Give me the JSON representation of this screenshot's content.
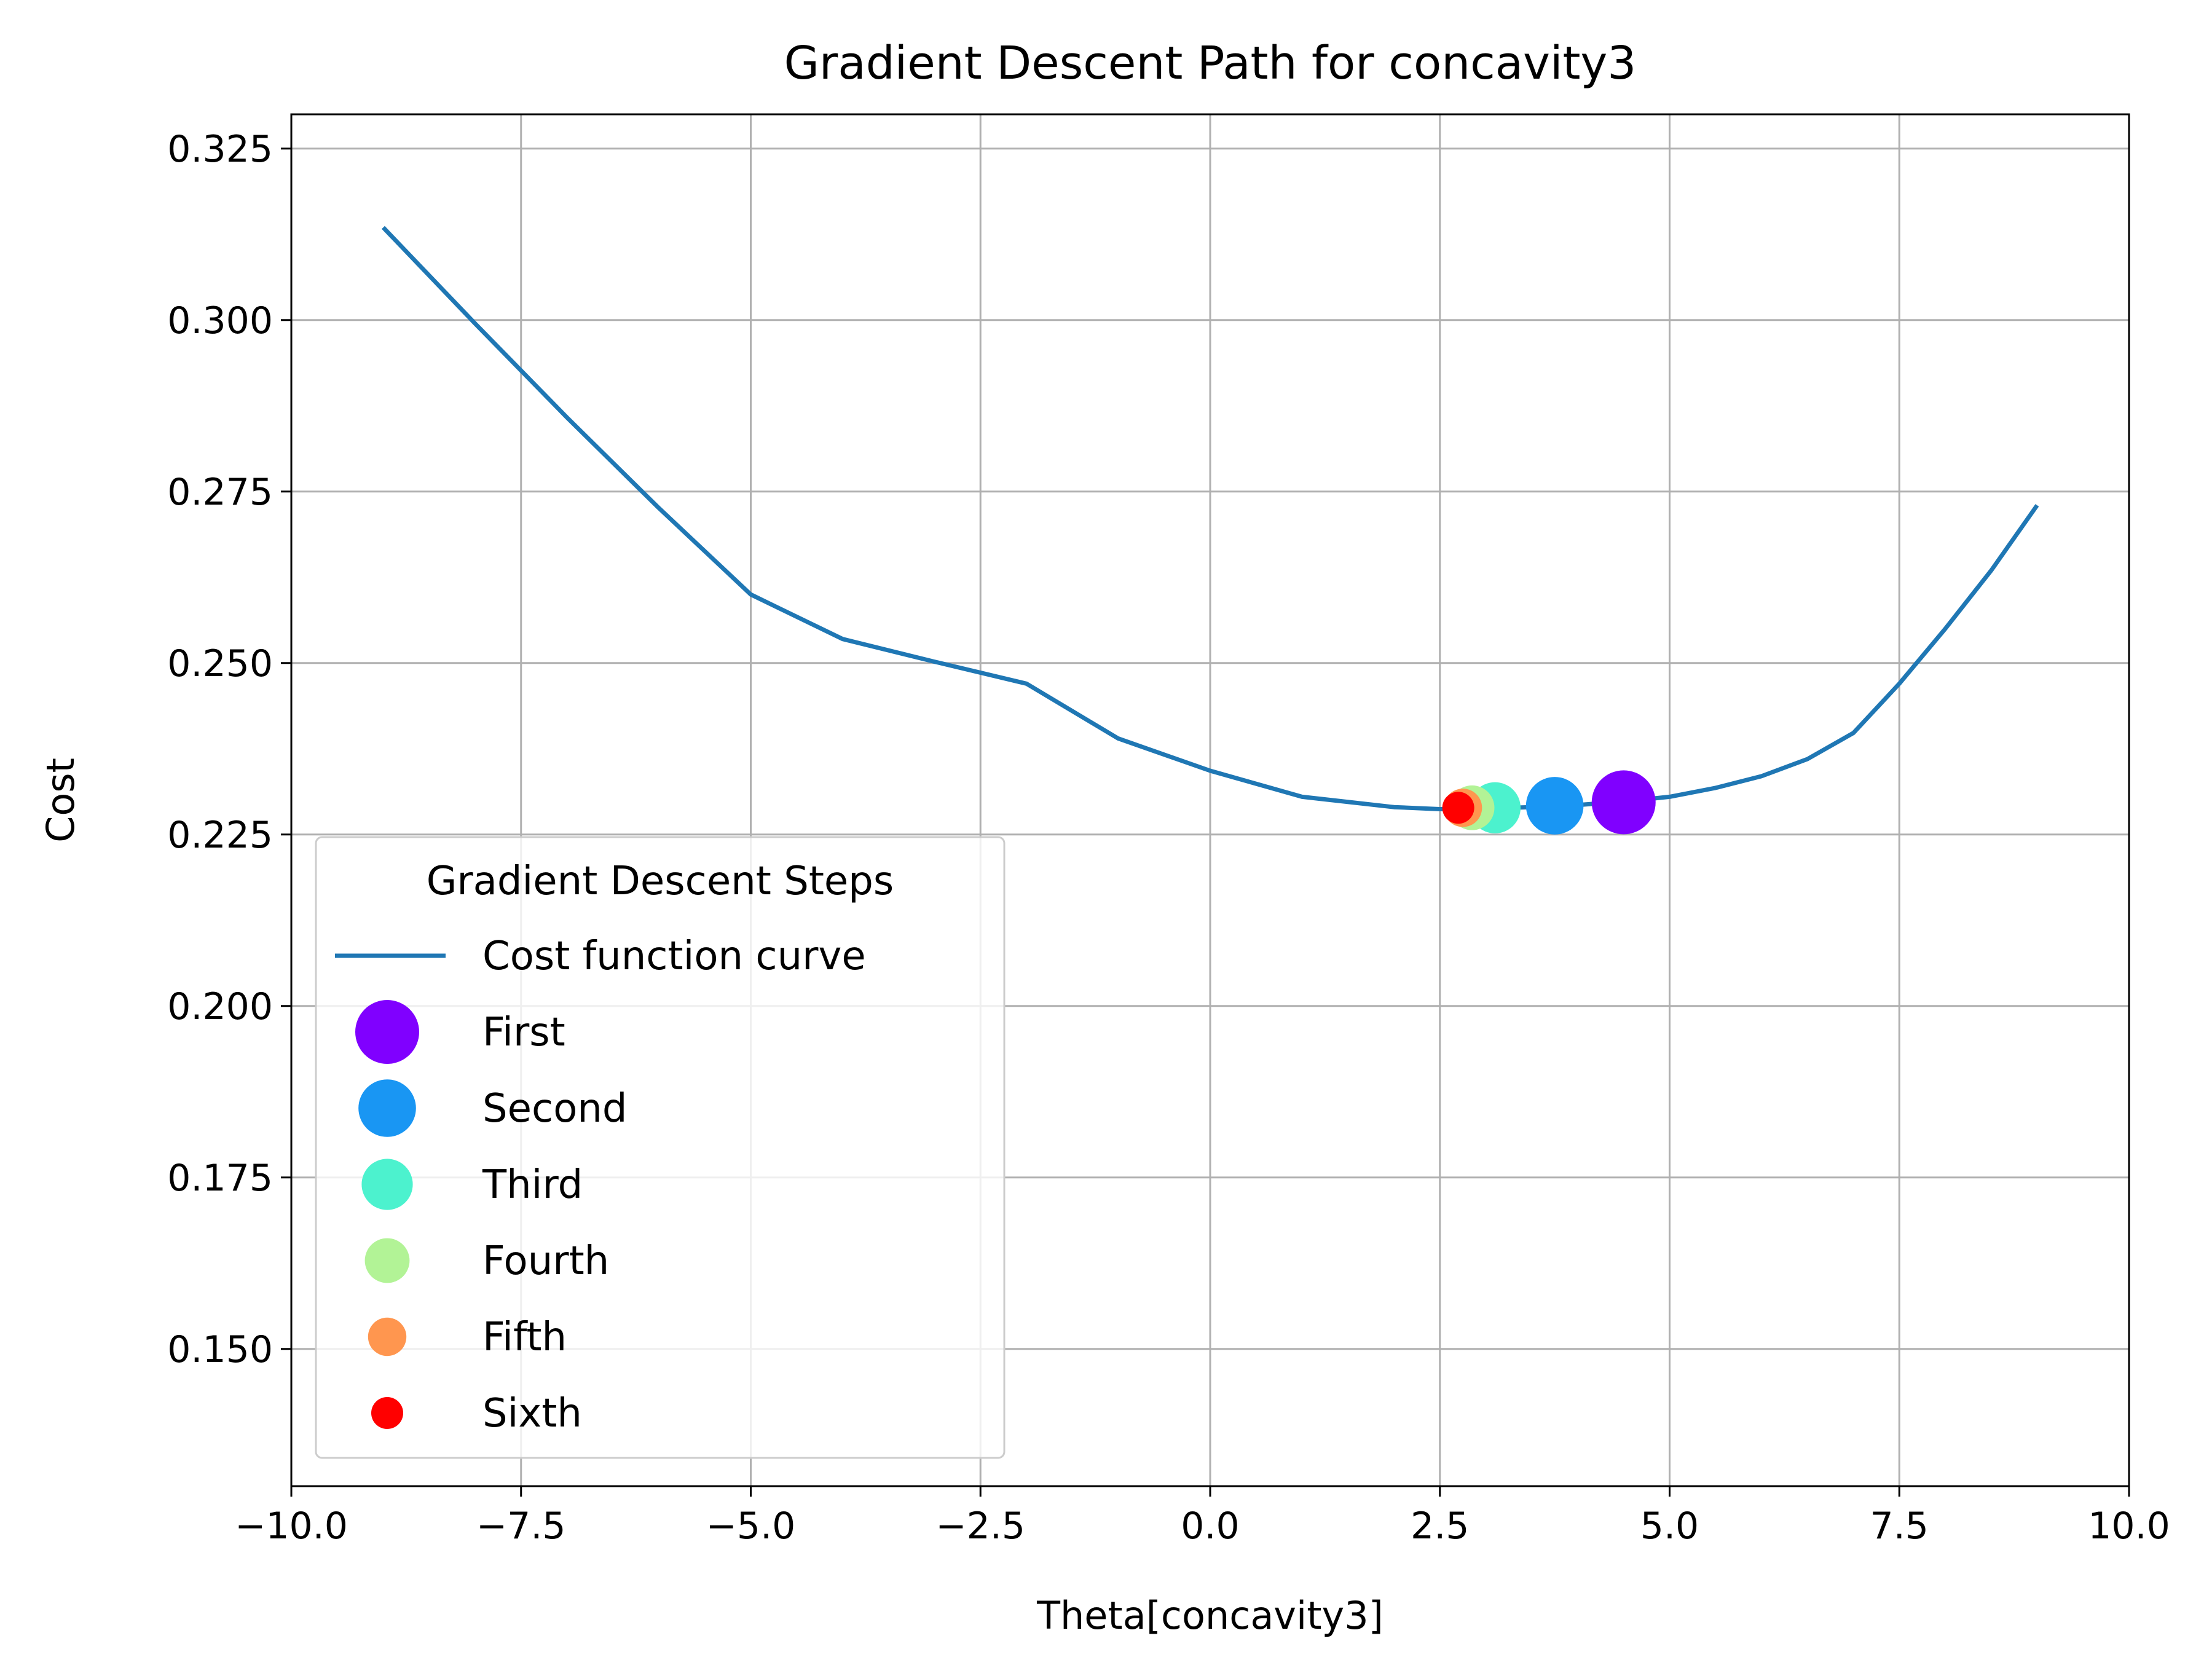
{
  "chart_data": {
    "type": "line",
    "title": "Gradient Descent Path for concavity3",
    "xlabel": "Theta[concavity3]",
    "ylabel": "Cost",
    "xlim": [
      -10.0,
      10.0
    ],
    "ylim": [
      0.13,
      0.33
    ],
    "x_ticks": [
      "−10.0",
      "−7.5",
      "−5.0",
      "−2.5",
      "0.0",
      "2.5",
      "5.0",
      "7.5",
      "10.0"
    ],
    "x_tick_values": [
      -10.0,
      -7.5,
      -5.0,
      -2.5,
      0.0,
      2.5,
      5.0,
      7.5,
      10.0
    ],
    "y_ticks": [
      "0.150",
      "0.175",
      "0.200",
      "0.225",
      "0.250",
      "0.275",
      "0.300",
      "0.325"
    ],
    "y_tick_values": [
      0.15,
      0.175,
      0.2,
      0.225,
      0.25,
      0.275,
      0.3,
      0.325
    ],
    "grid": true,
    "legend": {
      "title": "Gradient Descent Steps",
      "placement": "lower-left"
    },
    "series": [
      {
        "name": "Cost function curve",
        "color": "#1f77b4",
        "x": [
          -9.0,
          -8.0,
          -7.0,
          -6.0,
          -5.0,
          -4.0,
          -3.0,
          -2.0,
          -1.0,
          0.0,
          1.0,
          2.0,
          2.5,
          3.0,
          3.5,
          4.0,
          4.5,
          5.0,
          5.5,
          6.0,
          6.5,
          7.0,
          7.5,
          8.0,
          8.5,
          9.0
        ],
        "y": [
          0.3135,
          0.2995,
          0.2858,
          0.2726,
          0.26,
          0.2535,
          0.2502,
          0.247,
          0.239,
          0.2343,
          0.2305,
          0.229,
          0.2287,
          0.2288,
          0.229,
          0.2293,
          0.2298,
          0.2305,
          0.2318,
          0.2335,
          0.236,
          0.2398,
          0.247,
          0.255,
          0.2635,
          0.273
        ]
      }
    ],
    "steps": [
      {
        "name": "First",
        "x": 4.5,
        "y": 0.2297,
        "color": "#8000ff",
        "size": 1.0
      },
      {
        "name": "Second",
        "x": 3.75,
        "y": 0.2292,
        "color": "#1996f3",
        "size": 0.9
      },
      {
        "name": "Third",
        "x": 3.1,
        "y": 0.2289,
        "color": "#4cf2ce",
        "size": 0.8
      },
      {
        "name": "Fourth",
        "x": 2.85,
        "y": 0.2289,
        "color": "#b2f396",
        "size": 0.7
      },
      {
        "name": "Fifth",
        "x": 2.75,
        "y": 0.2289,
        "color": "#ff964f",
        "size": 0.6
      },
      {
        "name": "Sixth",
        "x": 2.7,
        "y": 0.2289,
        "color": "#ff0000",
        "size": 0.5
      }
    ]
  }
}
